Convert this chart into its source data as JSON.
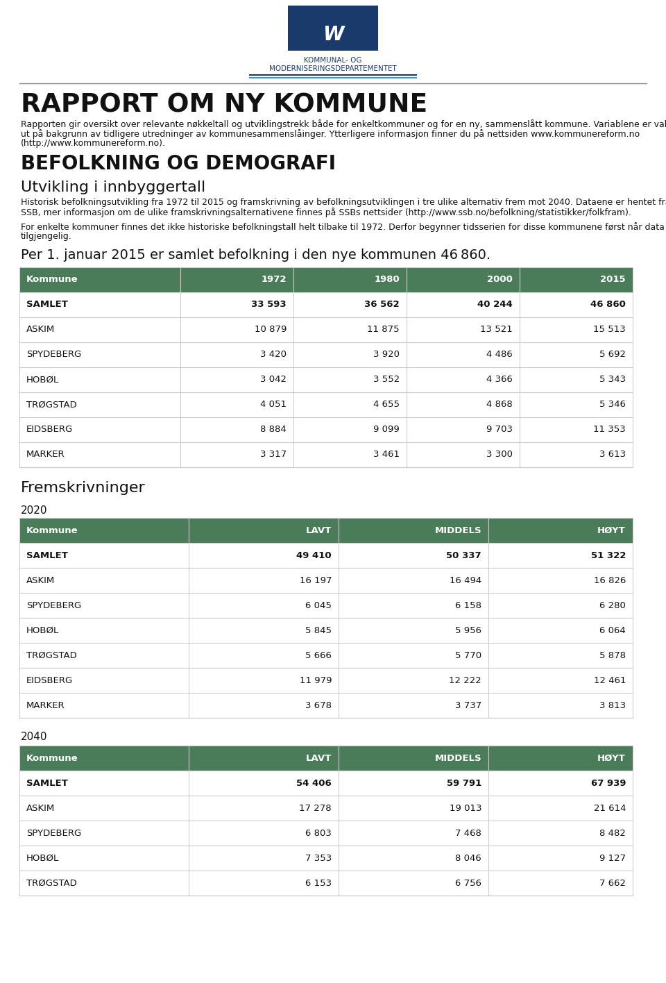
{
  "title_main": "RAPPORT OM NY KOMMUNE",
  "subtitle_main": "Rapporten gir oversikt over relevante nøkkeltall og utviklingstrekk både for enkeltkommuner og for en ny, sammenslått kommune. Variablene er valgt ut på bakgrunn av tidligere utredninger av kommunesammenslåinger. Ytterligere informasjon finner du på nettsiden www.kommunereform.no (http://www.kommunereform.no).",
  "section_title": "BEFOLKNING OG DEMOGRAFI",
  "subsection_title": "Utvikling i innbyggertall",
  "description1": "Historisk befolkningsutvikling fra 1972 til 2015 og framskrivning av befolkningsutviklingen i tre ulike alternativ frem mot 2040. Dataene er hentet fra SSB, mer informasjon om de ulike framskrivningsalternativene finnes på SSBs nettsider (http://www.ssb.no/befolkning/statistikker/folkfram).",
  "description2": "For enkelte kommuner finnes det ikke historiske befolkningstall helt tilbake til 1972. Derfor begynner tidsserien for disse kommunene først når data er tilgjengelig.",
  "highlight_text": "Per 1. januar 2015 er samlet befolkning i den nye kommunen 46 860.",
  "table1_header": [
    "Kommune",
    "1972",
    "1980",
    "2000",
    "2015"
  ],
  "table1_rows": [
    [
      "SAMLET",
      "33 593",
      "36 562",
      "40 244",
      "46 860"
    ],
    [
      "ASKIM",
      "10 879",
      "11 875",
      "13 521",
      "15 513"
    ],
    [
      "SPYDEBERG",
      "3 420",
      "3 920",
      "4 486",
      "5 692"
    ],
    [
      "HOBØL",
      "3 042",
      "3 552",
      "4 366",
      "5 343"
    ],
    [
      "TRØGSTAD",
      "4 051",
      "4 655",
      "4 868",
      "5 346"
    ],
    [
      "EIDSBERG",
      "8 884",
      "9 099",
      "9 703",
      "11 353"
    ],
    [
      "MARKER",
      "3 317",
      "3 461",
      "3 300",
      "3 613"
    ]
  ],
  "fremskrivninger_title": "Fremskrivninger",
  "table2020_year": "2020",
  "table2020_header": [
    "Kommune",
    "LAVT",
    "MIDDELS",
    "HØYT"
  ],
  "table2020_rows": [
    [
      "SAMLET",
      "49 410",
      "50 337",
      "51 322"
    ],
    [
      "ASKIM",
      "16 197",
      "16 494",
      "16 826"
    ],
    [
      "SPYDEBERG",
      "6 045",
      "6 158",
      "6 280"
    ],
    [
      "HOBØL",
      "5 845",
      "5 956",
      "6 064"
    ],
    [
      "TRØGSTAD",
      "5 666",
      "5 770",
      "5 878"
    ],
    [
      "EIDSBERG",
      "11 979",
      "12 222",
      "12 461"
    ],
    [
      "MARKER",
      "3 678",
      "3 737",
      "3 813"
    ]
  ],
  "table2040_year": "2040",
  "table2040_header": [
    "Kommune",
    "LAVT",
    "MIDDELS",
    "HØYT"
  ],
  "table2040_rows": [
    [
      "SAMLET",
      "54 406",
      "59 791",
      "67 939"
    ],
    [
      "ASKIM",
      "17 278",
      "19 013",
      "21 614"
    ],
    [
      "SPYDEBERG",
      "6 803",
      "7 468",
      "8 482"
    ],
    [
      "HOBØL",
      "7 353",
      "8 046",
      "9 127"
    ],
    [
      "TRØGSTAD",
      "6 153",
      "6 756",
      "7 662"
    ]
  ],
  "header_color": "#4a7c59",
  "header_text_color": "#ffffff",
  "border_color": "#cccccc",
  "text_color": "#000000",
  "logo_color": "#1a3a6b",
  "logo_text1": "KOMMUNAL- OG",
  "logo_text2": "MODERNISERINGSDEPARTEMENTET",
  "logo_line_color1": "#1a3a6b",
  "logo_line_color2": "#4a90d9",
  "separator_color": "#888888",
  "background_color": "#ffffff"
}
